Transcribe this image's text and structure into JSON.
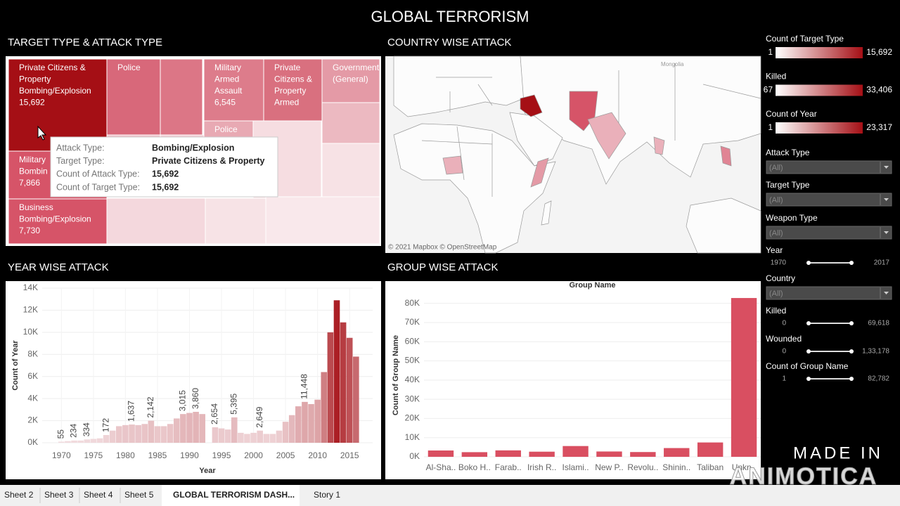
{
  "title": "GLOBAL TERRORISM",
  "treemap": {
    "title": "TARGET TYPE & ATTACK TYPE",
    "cells": [
      {
        "lines": [
          "Private Citizens &",
          "Property",
          "Bombing/Explosion",
          "15,692"
        ],
        "color": "#a50f15"
      },
      {
        "lines": [
          "Police"
        ],
        "color": "#d8687a"
      },
      {
        "lines": [
          "Military",
          "Armed",
          "Assault",
          "6,545"
        ],
        "color": "#dd7c8b"
      },
      {
        "lines": [
          "Private",
          "Citizens &",
          "Property",
          "Armed"
        ],
        "color": "#d9707f"
      },
      {
        "lines": [
          "Government",
          "(General)"
        ],
        "color": "#e49aa6"
      },
      {
        "lines": [
          "Military",
          "Bombin",
          "7,866"
        ],
        "color": "#d65468"
      },
      {
        "lines": [
          "Business",
          "Bombing/Explosion",
          "7,730"
        ],
        "color": "#d65468"
      },
      {
        "lines": [
          "Police"
        ],
        "color": "#e8a9b3"
      }
    ],
    "tooltip": [
      {
        "label": "Attack Type:",
        "value": "Bombing/Explosion"
      },
      {
        "label": "Target Type:",
        "value": "Private Citizens & Property"
      },
      {
        "label": "Count of Attack Type:",
        "value": "15,692"
      },
      {
        "label": "Count of Target Type:",
        "value": "15,692"
      }
    ]
  },
  "map": {
    "title": "COUNTRY WISE ATTACK",
    "place": "Mongolia",
    "attribution": "© 2021 Mapbox © OpenStreetMap"
  },
  "chart_data": [
    {
      "type": "bar",
      "title": "YEAR WISE ATTACK",
      "x": [
        1970,
        1971,
        1972,
        1973,
        1974,
        1975,
        1976,
        1977,
        1978,
        1979,
        1980,
        1981,
        1982,
        1983,
        1984,
        1985,
        1986,
        1987,
        1988,
        1989,
        1990,
        1991,
        1992,
        1993,
        1994,
        1995,
        1996,
        1997,
        1998,
        1999,
        2000,
        2001,
        2002,
        2003,
        2004,
        2005,
        2006,
        2007,
        2008,
        2009,
        2010,
        2011,
        2012,
        2013,
        2014,
        2015,
        2016,
        2017
      ],
      "values": [
        100,
        150,
        200,
        200,
        300,
        350,
        400,
        700,
        1100,
        1500,
        1600,
        1650,
        1600,
        1700,
        2000,
        1500,
        1500,
        1700,
        2200,
        2600,
        2700,
        2800,
        2600,
        null,
        1400,
        1300,
        1200,
        2300,
        900,
        800,
        900,
        1100,
        800,
        800,
        1100,
        1900,
        2500,
        3300,
        3700,
        3500,
        3900,
        6400,
        10000,
        12900,
        10900,
        9500,
        7800,
        null
      ],
      "xlim": [
        1967,
        2018.6
      ],
      "xticks": [
        1970,
        1975,
        1980,
        1985,
        1990,
        1995,
        2000,
        2005,
        2010,
        2015
      ],
      "ylim": [
        0,
        14000
      ],
      "yticks": [
        {
          "value": 0,
          "label": "0K"
        },
        {
          "value": 2000,
          "label": "2K"
        },
        {
          "value": 4000,
          "label": "4K"
        },
        {
          "value": 6000,
          "label": "6K"
        },
        {
          "value": 8000,
          "label": "8K"
        },
        {
          "value": 10000,
          "label": "10K"
        },
        {
          "value": 12000,
          "label": "12K"
        },
        {
          "value": 14000,
          "label": "14K"
        }
      ],
      "xlabel": "Year",
      "ylabel": "Count of Year",
      "color_range": [
        "#f2dde0",
        "#a50f15"
      ],
      "grid": true,
      "annotations": [
        {
          "x": 1970,
          "text": "55"
        },
        {
          "x": 1972,
          "text": "234"
        },
        {
          "x": 1974,
          "text": "334"
        },
        {
          "x": 1977,
          "text": "172"
        },
        {
          "x": 1981,
          "text": "1,637"
        },
        {
          "x": 1984,
          "text": "2,142"
        },
        {
          "x": 1989,
          "text": "3,015"
        },
        {
          "x": 1991,
          "text": "3,860"
        },
        {
          "x": 1994,
          "text": "2,654"
        },
        {
          "x": 1997,
          "text": "5,395"
        },
        {
          "x": 2001,
          "text": "2,649"
        },
        {
          "x": 2008,
          "text": "11,448"
        }
      ]
    },
    {
      "type": "bar",
      "title": "GROUP WISE ATTACK",
      "subtitle": "Group Name",
      "categories": [
        "Al-Sha..",
        "Boko H..",
        "Farab..",
        "Irish R..",
        "Islami..",
        "New P..",
        "Revolu..",
        "Shinin..",
        "Taliban",
        "Unkn.."
      ],
      "values": [
        3288,
        2418,
        3351,
        2671,
        5613,
        2772,
        2487,
        4555,
        7478,
        82782
      ],
      "color": "#d94f61",
      "ylim": [
        0,
        85000
      ],
      "yticks": [
        {
          "value": 0,
          "label": "0K"
        },
        {
          "value": 10000,
          "label": "10K"
        },
        {
          "value": 20000,
          "label": "20K"
        },
        {
          "value": 30000,
          "label": "30K"
        },
        {
          "value": 40000,
          "label": "40K"
        },
        {
          "value": 50000,
          "label": "50K"
        },
        {
          "value": 60000,
          "label": "60K"
        },
        {
          "value": 70000,
          "label": "70K"
        },
        {
          "value": 80000,
          "label": "80K"
        }
      ],
      "ylabel": "Count of Group Name",
      "grid": true
    }
  ],
  "sidebar": {
    "legends": [
      {
        "name": "Count of Target Type",
        "min": "1",
        "max": "15,692"
      },
      {
        "name": "Killed",
        "min": "67",
        "max": "33,406"
      },
      {
        "name": "Count of Year",
        "min": "1",
        "max": "23,317"
      }
    ],
    "controls": [
      {
        "name": "Attack Type",
        "value": "(All)"
      },
      {
        "name": "Target Type",
        "value": "(All)"
      },
      {
        "name": "Weapon Type",
        "value": "(All)"
      },
      {
        "name": "Year",
        "min": "1970",
        "max": "2017"
      },
      {
        "name": "Country",
        "value": "(All)"
      },
      {
        "name": "Killed",
        "min": "0",
        "max": "69,618"
      },
      {
        "name": "Wounded",
        "min": "0",
        "max": "1,33,178"
      },
      {
        "name": "Count of Group Name",
        "min": "1",
        "max": "82,782"
      }
    ]
  },
  "tabs": [
    "Sheet 2",
    "Sheet 3",
    "Sheet 4",
    "Sheet 5",
    "GLOBAL TERRORISM DASH...",
    "Story 1"
  ],
  "watermark": [
    "MADE IN",
    "ANIMOTICA"
  ]
}
